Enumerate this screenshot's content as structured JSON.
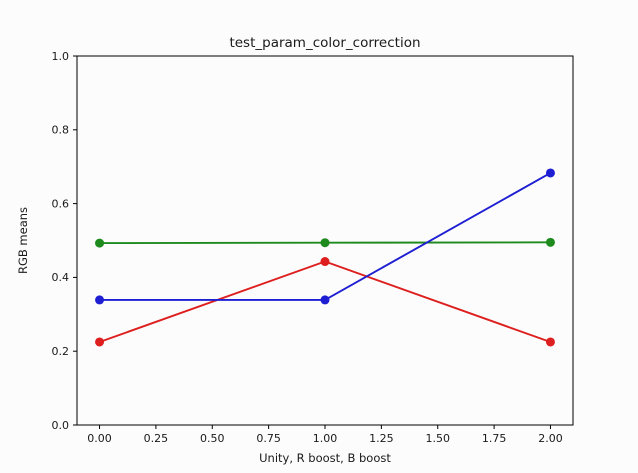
{
  "figure": {
    "background": "#fcfcfc"
  },
  "chart_data": {
    "type": "line",
    "title": "test_param_color_correction",
    "xlabel": "Unity, R boost, B boost",
    "ylabel": "RGB means",
    "x": [
      0.0,
      1.0,
      2.0
    ],
    "series": [
      {
        "name": "red",
        "color": "#dd1f1f",
        "values": [
          0.225,
          0.443,
          0.225
        ]
      },
      {
        "name": "green",
        "color": "#1f8b1f",
        "values": [
          0.493,
          0.494,
          0.495
        ]
      },
      {
        "name": "blue",
        "color": "#1e1ed2",
        "values": [
          0.339,
          0.339,
          0.683
        ]
      }
    ],
    "marker": "circle",
    "xlim": [
      -0.1,
      2.1
    ],
    "ylim": [
      0.0,
      1.0
    ],
    "xticks": {
      "values": [
        0.0,
        0.25,
        0.5,
        0.75,
        1.0,
        1.25,
        1.5,
        1.75,
        2.0
      ],
      "labels": [
        "0.00",
        "0.25",
        "0.50",
        "0.75",
        "1.00",
        "1.25",
        "1.50",
        "1.75",
        "2.00"
      ]
    },
    "yticks": {
      "values": [
        0.0,
        0.2,
        0.4,
        0.6,
        0.8,
        1.0
      ],
      "labels": [
        "0.0",
        "0.2",
        "0.4",
        "0.6",
        "0.8",
        "1.0"
      ]
    },
    "grid": false,
    "legend": "none",
    "axis_color": "#000000",
    "text_color": "#1a1a1a"
  }
}
